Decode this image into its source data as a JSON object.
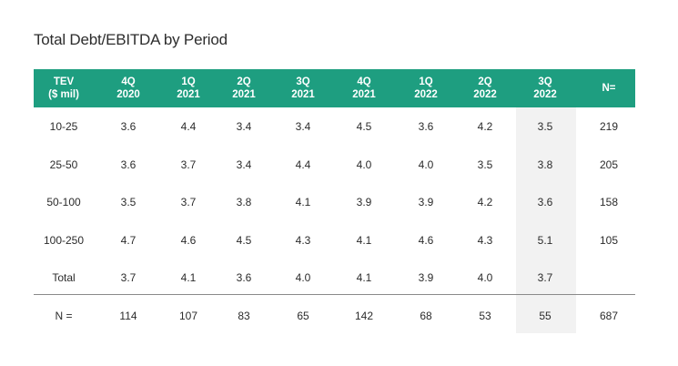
{
  "chart_data": {
    "type": "table",
    "title": "Total Debt/EBITDA by Period",
    "columns": [
      "TEV\n($ mil)",
      "4Q\n2020",
      "1Q\n2021",
      "2Q\n2021",
      "3Q\n2021",
      "4Q\n2021",
      "1Q\n2022",
      "2Q\n2022",
      "3Q\n2022",
      "N="
    ],
    "rows": [
      [
        "10-25",
        "3.6",
        "4.4",
        "3.4",
        "3.4",
        "4.5",
        "3.6",
        "4.2",
        "3.5",
        "219"
      ],
      [
        "25-50",
        "3.6",
        "3.7",
        "3.4",
        "4.4",
        "4.0",
        "4.0",
        "3.5",
        "3.8",
        "205"
      ],
      [
        "50-100",
        "3.5",
        "3.7",
        "3.8",
        "4.1",
        "3.9",
        "3.9",
        "4.2",
        "3.6",
        "158"
      ],
      [
        "100-250",
        "4.7",
        "4.6",
        "4.5",
        "4.3",
        "4.1",
        "4.6",
        "4.3",
        "5.1",
        "105"
      ],
      [
        "Total",
        "3.7",
        "4.1",
        "3.6",
        "4.0",
        "4.1",
        "3.9",
        "4.0",
        "3.7",
        ""
      ]
    ],
    "footer_row": [
      "N =",
      "114",
      "107",
      "83",
      "65",
      "142",
      "68",
      "53",
      "55",
      "687"
    ],
    "highlighted_column": "3Q\n2022",
    "header_color": "#1e9e80",
    "highlight_color": "#f2f2f2"
  }
}
